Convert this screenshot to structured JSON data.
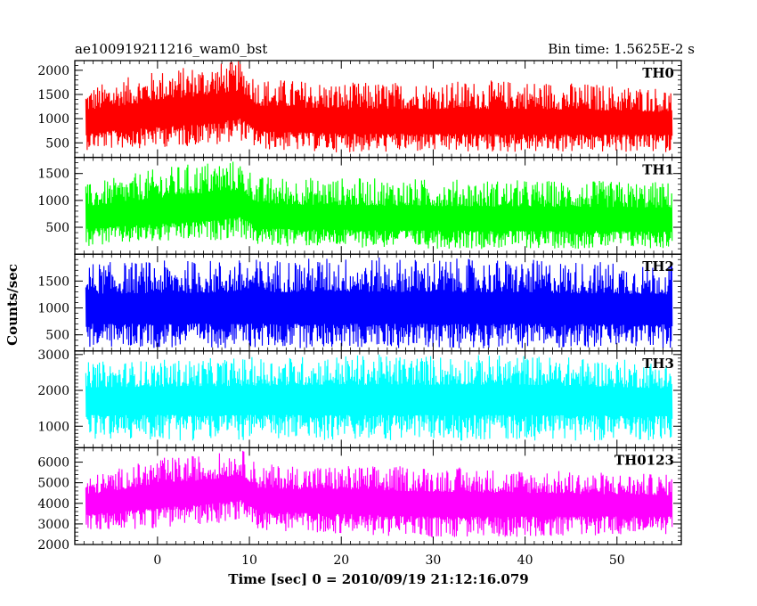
{
  "header": {
    "title": "ae100919211216_wam0_bst",
    "bin_time": "Bin time: 1.5625E-2 s"
  },
  "chart_data": {
    "type": "line",
    "xlabel": "Time [sec] 0 = 2010/09/19 21:12:16.079",
    "ylabel": "Counts/sec",
    "xlim": [
      -9,
      57
    ],
    "xticks": [
      0,
      10,
      20,
      30,
      40,
      50
    ],
    "data_range": [
      -7.8,
      56.0
    ],
    "bin_time_s": 0.015625,
    "panels": [
      {
        "name": "TH0",
        "color": "#ff0000",
        "ylim": [
          200,
          2200
        ],
        "yticks": [
          500,
          1000,
          1500,
          2000
        ],
        "profile": [
          {
            "t": -7.8,
            "mean": 900,
            "lo": 350,
            "hi": 1650
          },
          {
            "t": 0,
            "mean": 1050,
            "lo": 400,
            "hi": 2000
          },
          {
            "t": 6,
            "mean": 1150,
            "lo": 450,
            "hi": 2150
          },
          {
            "t": 9,
            "mean": 1250,
            "lo": 550,
            "hi": 2200
          },
          {
            "t": 11,
            "mean": 950,
            "lo": 350,
            "hi": 1850
          },
          {
            "t": 20,
            "mean": 900,
            "lo": 300,
            "hi": 1750
          },
          {
            "t": 40,
            "mean": 880,
            "lo": 300,
            "hi": 1800
          },
          {
            "t": 56,
            "mean": 860,
            "lo": 300,
            "hi": 1650
          }
        ]
      },
      {
        "name": "TH1",
        "color": "#00ff00",
        "ylim": [
          0,
          1800
        ],
        "yticks": [
          500,
          1000,
          1500
        ],
        "profile": [
          {
            "t": -7.8,
            "mean": 650,
            "lo": 150,
            "hi": 1300
          },
          {
            "t": 0,
            "mean": 750,
            "lo": 200,
            "hi": 1600
          },
          {
            "t": 6,
            "mean": 820,
            "lo": 250,
            "hi": 1750
          },
          {
            "t": 9,
            "mean": 900,
            "lo": 300,
            "hi": 1750
          },
          {
            "t": 11,
            "mean": 650,
            "lo": 150,
            "hi": 1450
          },
          {
            "t": 30,
            "mean": 620,
            "lo": 100,
            "hi": 1400
          },
          {
            "t": 56,
            "mean": 600,
            "lo": 100,
            "hi": 1350
          }
        ]
      },
      {
        "name": "TH2",
        "color": "#0000ff",
        "ylim": [
          200,
          2000
        ],
        "yticks": [
          500,
          1000,
          1500
        ],
        "profile": [
          {
            "t": -7.8,
            "mean": 950,
            "lo": 250,
            "hi": 1850
          },
          {
            "t": 20,
            "mean": 950,
            "lo": 250,
            "hi": 1950
          },
          {
            "t": 40,
            "mean": 950,
            "lo": 250,
            "hi": 1900
          },
          {
            "t": 56,
            "mean": 930,
            "lo": 250,
            "hi": 1850
          }
        ]
      },
      {
        "name": "TH3",
        "color": "#00ffff",
        "ylim": [
          400,
          3100
        ],
        "yticks": [
          1000,
          2000,
          3000
        ],
        "profile": [
          {
            "t": -7.8,
            "mean": 1700,
            "lo": 600,
            "hi": 2800
          },
          {
            "t": 20,
            "mean": 1700,
            "lo": 600,
            "hi": 3000
          },
          {
            "t": 40,
            "mean": 1700,
            "lo": 600,
            "hi": 3000
          },
          {
            "t": 56,
            "mean": 1650,
            "lo": 600,
            "hi": 2800
          }
        ]
      },
      {
        "name": "TH0123",
        "color": "#ff00ff",
        "ylim": [
          2000,
          6700
        ],
        "yticks": [
          2000,
          3000,
          4000,
          5000,
          6000
        ],
        "profile": [
          {
            "t": -7.8,
            "mean": 3900,
            "lo": 2600,
            "hi": 5300
          },
          {
            "t": 0,
            "mean": 4300,
            "lo": 2800,
            "hi": 6200
          },
          {
            "t": 6,
            "mean": 4500,
            "lo": 3000,
            "hi": 6400
          },
          {
            "t": 9,
            "mean": 4700,
            "lo": 3200,
            "hi": 6700
          },
          {
            "t": 11,
            "mean": 4100,
            "lo": 2700,
            "hi": 5900
          },
          {
            "t": 30,
            "mean": 3900,
            "lo": 2300,
            "hi": 5800
          },
          {
            "t": 56,
            "mean": 3850,
            "lo": 2500,
            "hi": 5400
          }
        ]
      }
    ]
  }
}
